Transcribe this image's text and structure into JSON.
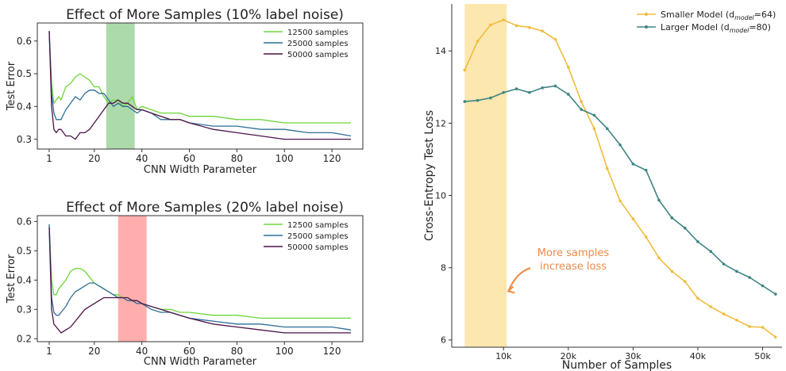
{
  "chart_data": [
    {
      "type": "line",
      "title": "Effect of More Samples (10% label noise)",
      "xlabel": "CNN Width Parameter",
      "ylabel": "Test Error",
      "xlim": [
        -4,
        133
      ],
      "ylim": [
        0.27,
        0.655
      ],
      "xticks": [
        1,
        20,
        40,
        60,
        80,
        100,
        120
      ],
      "yticks": [
        0.3,
        0.4,
        0.5,
        0.6
      ],
      "grid": false,
      "legend_position": "top-right",
      "highlight": {
        "x0": 25,
        "x1": 37,
        "color": "#9fd39c"
      },
      "series": [
        {
          "name": "12500 samples",
          "color": "#6fd63a",
          "x": [
            1,
            2,
            3,
            4,
            5,
            6,
            8,
            10,
            12,
            14,
            16,
            18,
            20,
            22,
            24,
            26,
            28,
            30,
            32,
            34,
            36,
            38,
            40,
            44,
            48,
            52,
            56,
            60,
            70,
            80,
            90,
            100,
            110,
            120,
            128
          ],
          "y": [
            0.63,
            0.47,
            0.41,
            0.42,
            0.43,
            0.42,
            0.46,
            0.47,
            0.49,
            0.5,
            0.49,
            0.48,
            0.46,
            0.46,
            0.43,
            0.41,
            0.42,
            0.42,
            0.4,
            0.41,
            0.43,
            0.39,
            0.4,
            0.39,
            0.38,
            0.38,
            0.38,
            0.37,
            0.37,
            0.36,
            0.36,
            0.35,
            0.35,
            0.35,
            0.35
          ]
        },
        {
          "name": "25000 samples",
          "color": "#2d6e96",
          "x": [
            1,
            2,
            3,
            4,
            5,
            6,
            8,
            10,
            12,
            14,
            16,
            18,
            20,
            22,
            24,
            26,
            28,
            30,
            32,
            34,
            36,
            38,
            40,
            44,
            48,
            52,
            56,
            60,
            70,
            80,
            90,
            100,
            110,
            120,
            128
          ],
          "y": [
            0.63,
            0.44,
            0.38,
            0.36,
            0.36,
            0.36,
            0.39,
            0.41,
            0.43,
            0.42,
            0.44,
            0.45,
            0.45,
            0.44,
            0.44,
            0.42,
            0.4,
            0.41,
            0.4,
            0.4,
            0.39,
            0.38,
            0.39,
            0.38,
            0.36,
            0.36,
            0.36,
            0.35,
            0.34,
            0.34,
            0.33,
            0.33,
            0.32,
            0.32,
            0.31
          ]
        },
        {
          "name": "50000 samples",
          "color": "#4b1248",
          "x": [
            1,
            2,
            3,
            4,
            5,
            6,
            8,
            10,
            12,
            14,
            16,
            18,
            20,
            22,
            24,
            26,
            28,
            30,
            32,
            34,
            36,
            38,
            40,
            44,
            48,
            52,
            56,
            60,
            70,
            80,
            90,
            100,
            110,
            120,
            128
          ],
          "y": [
            0.63,
            0.4,
            0.33,
            0.32,
            0.33,
            0.33,
            0.31,
            0.31,
            0.3,
            0.32,
            0.32,
            0.33,
            0.35,
            0.37,
            0.39,
            0.41,
            0.41,
            0.42,
            0.41,
            0.41,
            0.4,
            0.39,
            0.39,
            0.38,
            0.37,
            0.36,
            0.36,
            0.35,
            0.33,
            0.32,
            0.31,
            0.3,
            0.3,
            0.3,
            0.3
          ]
        }
      ]
    },
    {
      "type": "line",
      "title": "Effect of More Samples (20% label noise)",
      "xlabel": "CNN Width Parameter",
      "ylabel": "Test Error",
      "xlim": [
        -4,
        133
      ],
      "ylim": [
        0.19,
        0.62
      ],
      "xticks": [
        1,
        20,
        40,
        60,
        80,
        100,
        120
      ],
      "yticks": [
        0.2,
        0.3,
        0.4,
        0.5,
        0.6
      ],
      "grid": false,
      "legend_position": "top-right",
      "highlight": {
        "x0": 30,
        "x1": 42,
        "color": "#ff9f9f"
      },
      "series": [
        {
          "name": "12500 samples",
          "color": "#6fd63a",
          "x": [
            1,
            2,
            3,
            4,
            5,
            6,
            8,
            10,
            12,
            14,
            16,
            18,
            20,
            22,
            24,
            26,
            28,
            30,
            32,
            34,
            36,
            38,
            40,
            44,
            48,
            52,
            56,
            60,
            70,
            80,
            90,
            100,
            110,
            120,
            128
          ],
          "y": [
            0.59,
            0.4,
            0.35,
            0.35,
            0.37,
            0.38,
            0.4,
            0.43,
            0.44,
            0.44,
            0.43,
            0.41,
            0.39,
            0.38,
            0.37,
            0.36,
            0.35,
            0.35,
            0.34,
            0.34,
            0.33,
            0.33,
            0.32,
            0.31,
            0.3,
            0.3,
            0.29,
            0.29,
            0.28,
            0.28,
            0.27,
            0.27,
            0.27,
            0.27,
            0.27
          ]
        },
        {
          "name": "25000 samples",
          "color": "#2d6e96",
          "x": [
            1,
            2,
            3,
            4,
            5,
            6,
            8,
            10,
            12,
            14,
            16,
            18,
            20,
            22,
            24,
            26,
            28,
            30,
            32,
            34,
            36,
            38,
            40,
            44,
            48,
            52,
            56,
            60,
            70,
            80,
            90,
            100,
            110,
            120,
            128
          ],
          "y": [
            0.59,
            0.34,
            0.29,
            0.28,
            0.28,
            0.29,
            0.31,
            0.34,
            0.36,
            0.37,
            0.38,
            0.39,
            0.39,
            0.38,
            0.37,
            0.36,
            0.35,
            0.34,
            0.34,
            0.33,
            0.33,
            0.32,
            0.32,
            0.3,
            0.29,
            0.29,
            0.28,
            0.27,
            0.26,
            0.25,
            0.25,
            0.24,
            0.24,
            0.24,
            0.23
          ]
        },
        {
          "name": "50000 samples",
          "color": "#4b1248",
          "x": [
            1,
            2,
            3,
            4,
            5,
            6,
            8,
            10,
            12,
            14,
            16,
            18,
            20,
            22,
            24,
            26,
            28,
            30,
            32,
            34,
            36,
            38,
            40,
            44,
            48,
            52,
            56,
            60,
            70,
            80,
            90,
            100,
            110,
            120,
            128
          ],
          "y": [
            0.58,
            0.3,
            0.25,
            0.24,
            0.23,
            0.22,
            0.23,
            0.24,
            0.26,
            0.28,
            0.3,
            0.31,
            0.32,
            0.33,
            0.34,
            0.34,
            0.34,
            0.34,
            0.34,
            0.34,
            0.33,
            0.33,
            0.32,
            0.31,
            0.3,
            0.29,
            0.28,
            0.27,
            0.25,
            0.24,
            0.23,
            0.22,
            0.22,
            0.22,
            0.22
          ]
        }
      ]
    },
    {
      "type": "line",
      "title": "",
      "xlabel": "Number of Samples",
      "ylabel": "Cross-Entropy Test Loss",
      "xlim": [
        2000,
        53000
      ],
      "ylim": [
        5.8,
        15.3
      ],
      "xticks": [
        10000,
        20000,
        30000,
        40000,
        50000
      ],
      "xtick_labels": [
        "10k",
        "20k",
        "30k",
        "40k",
        "50k"
      ],
      "yticks": [
        6,
        8,
        10,
        12,
        14
      ],
      "grid": false,
      "legend_position": "top-right",
      "highlight": {
        "x0": 4000,
        "x1": 10500,
        "color": "#fbe3a1"
      },
      "annotation": {
        "lines": [
          "More samples",
          "increase loss"
        ],
        "color": "#ef8a45",
        "arrow_to": [
          10500,
          7.35
        ]
      },
      "series": [
        {
          "name": "Smaller Model",
          "name_parts": [
            "Smaller Model (d",
            "model",
            "=64)"
          ],
          "color": "#f0bc3c",
          "x": [
            4000,
            6000,
            8000,
            10000,
            12000,
            14000,
            16000,
            18000,
            20000,
            22000,
            24000,
            26000,
            28000,
            30000,
            32000,
            34000,
            36000,
            38000,
            40000,
            42000,
            44000,
            46000,
            48000,
            50000,
            52000
          ],
          "y": [
            13.47,
            14.27,
            14.72,
            14.86,
            14.7,
            14.65,
            14.55,
            14.32,
            13.55,
            12.6,
            11.85,
            10.75,
            9.85,
            9.35,
            8.85,
            8.27,
            7.9,
            7.62,
            7.15,
            6.92,
            6.72,
            6.55,
            6.37,
            6.35,
            6.08
          ]
        },
        {
          "name": "Larger  Model",
          "name_parts": [
            "Larger  Model (d",
            "model",
            "=80)"
          ],
          "color": "#3d8582",
          "x": [
            4000,
            6000,
            8000,
            10000,
            12000,
            14000,
            16000,
            18000,
            20000,
            22000,
            24000,
            26000,
            28000,
            30000,
            32000,
            34000,
            36000,
            38000,
            40000,
            42000,
            44000,
            46000,
            48000,
            50000,
            52000
          ],
          "y": [
            12.6,
            12.63,
            12.7,
            12.85,
            12.95,
            12.85,
            12.98,
            13.03,
            12.8,
            12.38,
            12.22,
            11.85,
            11.4,
            10.87,
            10.7,
            9.87,
            9.38,
            9.1,
            8.72,
            8.45,
            8.1,
            7.9,
            7.73,
            7.5,
            7.27
          ]
        }
      ]
    }
  ]
}
